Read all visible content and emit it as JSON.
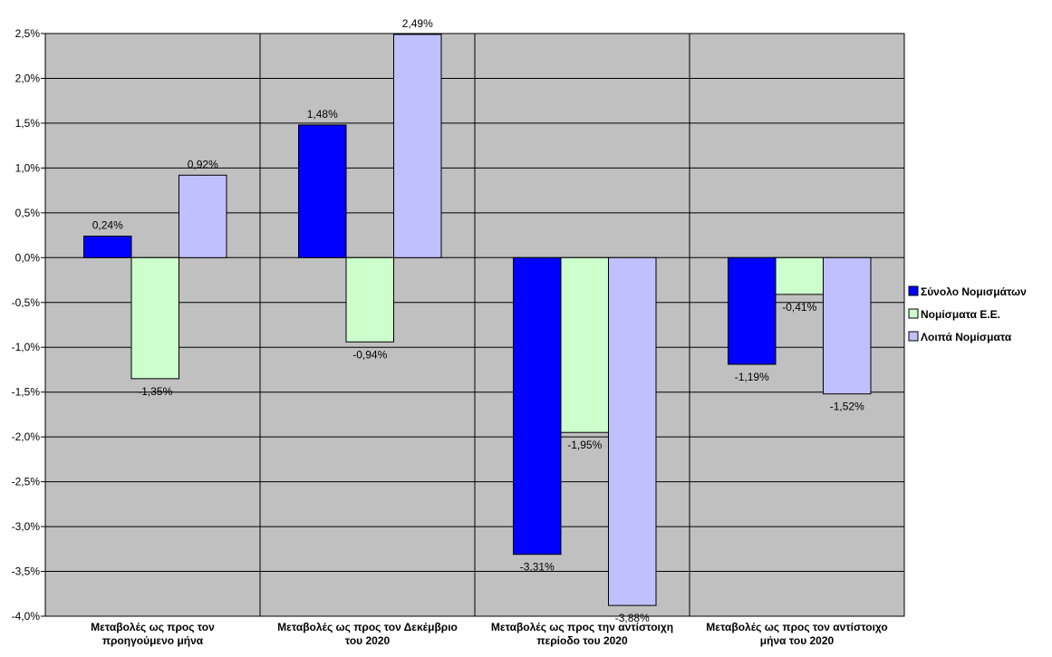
{
  "chart_data": {
    "type": "bar",
    "title": "",
    "xlabel": "",
    "ylabel": "",
    "ylim": [
      -4.0,
      2.5
    ],
    "y_tick_step": 0.5,
    "y_tick_format": "percent_comma_1dp",
    "grid": true,
    "plot_background": "#c0c0c0",
    "legend_position": "right",
    "categories": [
      [
        "Μεταβολές ως προς τον",
        "προηγούμενο μήνα"
      ],
      [
        "Μεταβολές ως προς τον Δεκέμβριο",
        "του 2020"
      ],
      [
        "Μεταβολές ως προς την αντίστοιχη",
        "περίοδο του 2020"
      ],
      [
        "Μεταβολές ως προς τον αντίστοιχο",
        "μήνα του 2020"
      ]
    ],
    "series": [
      {
        "name": "Σύνολο Νομισμάτων",
        "color": "#0000ff",
        "values": [
          0.24,
          1.48,
          -3.31,
          -1.19
        ],
        "labels": [
          "0,24%",
          "1,48%",
          "-3,31%",
          "-1,19%"
        ]
      },
      {
        "name": "Νομίσματα  Ε.Ε.",
        "color": "#ccffcc",
        "values": [
          -1.35,
          -0.94,
          -1.95,
          -0.41
        ],
        "labels": [
          "-1,35%",
          "-0,94%",
          "-1,95%",
          "-0,41%"
        ]
      },
      {
        "name": "Λοιπά Νομίσματα",
        "color": "#c0c0ff",
        "values": [
          0.92,
          2.49,
          -3.88,
          -1.52
        ],
        "labels": [
          "0,92%",
          "2,49%",
          "-3,88%",
          "-1,52%"
        ]
      }
    ]
  }
}
